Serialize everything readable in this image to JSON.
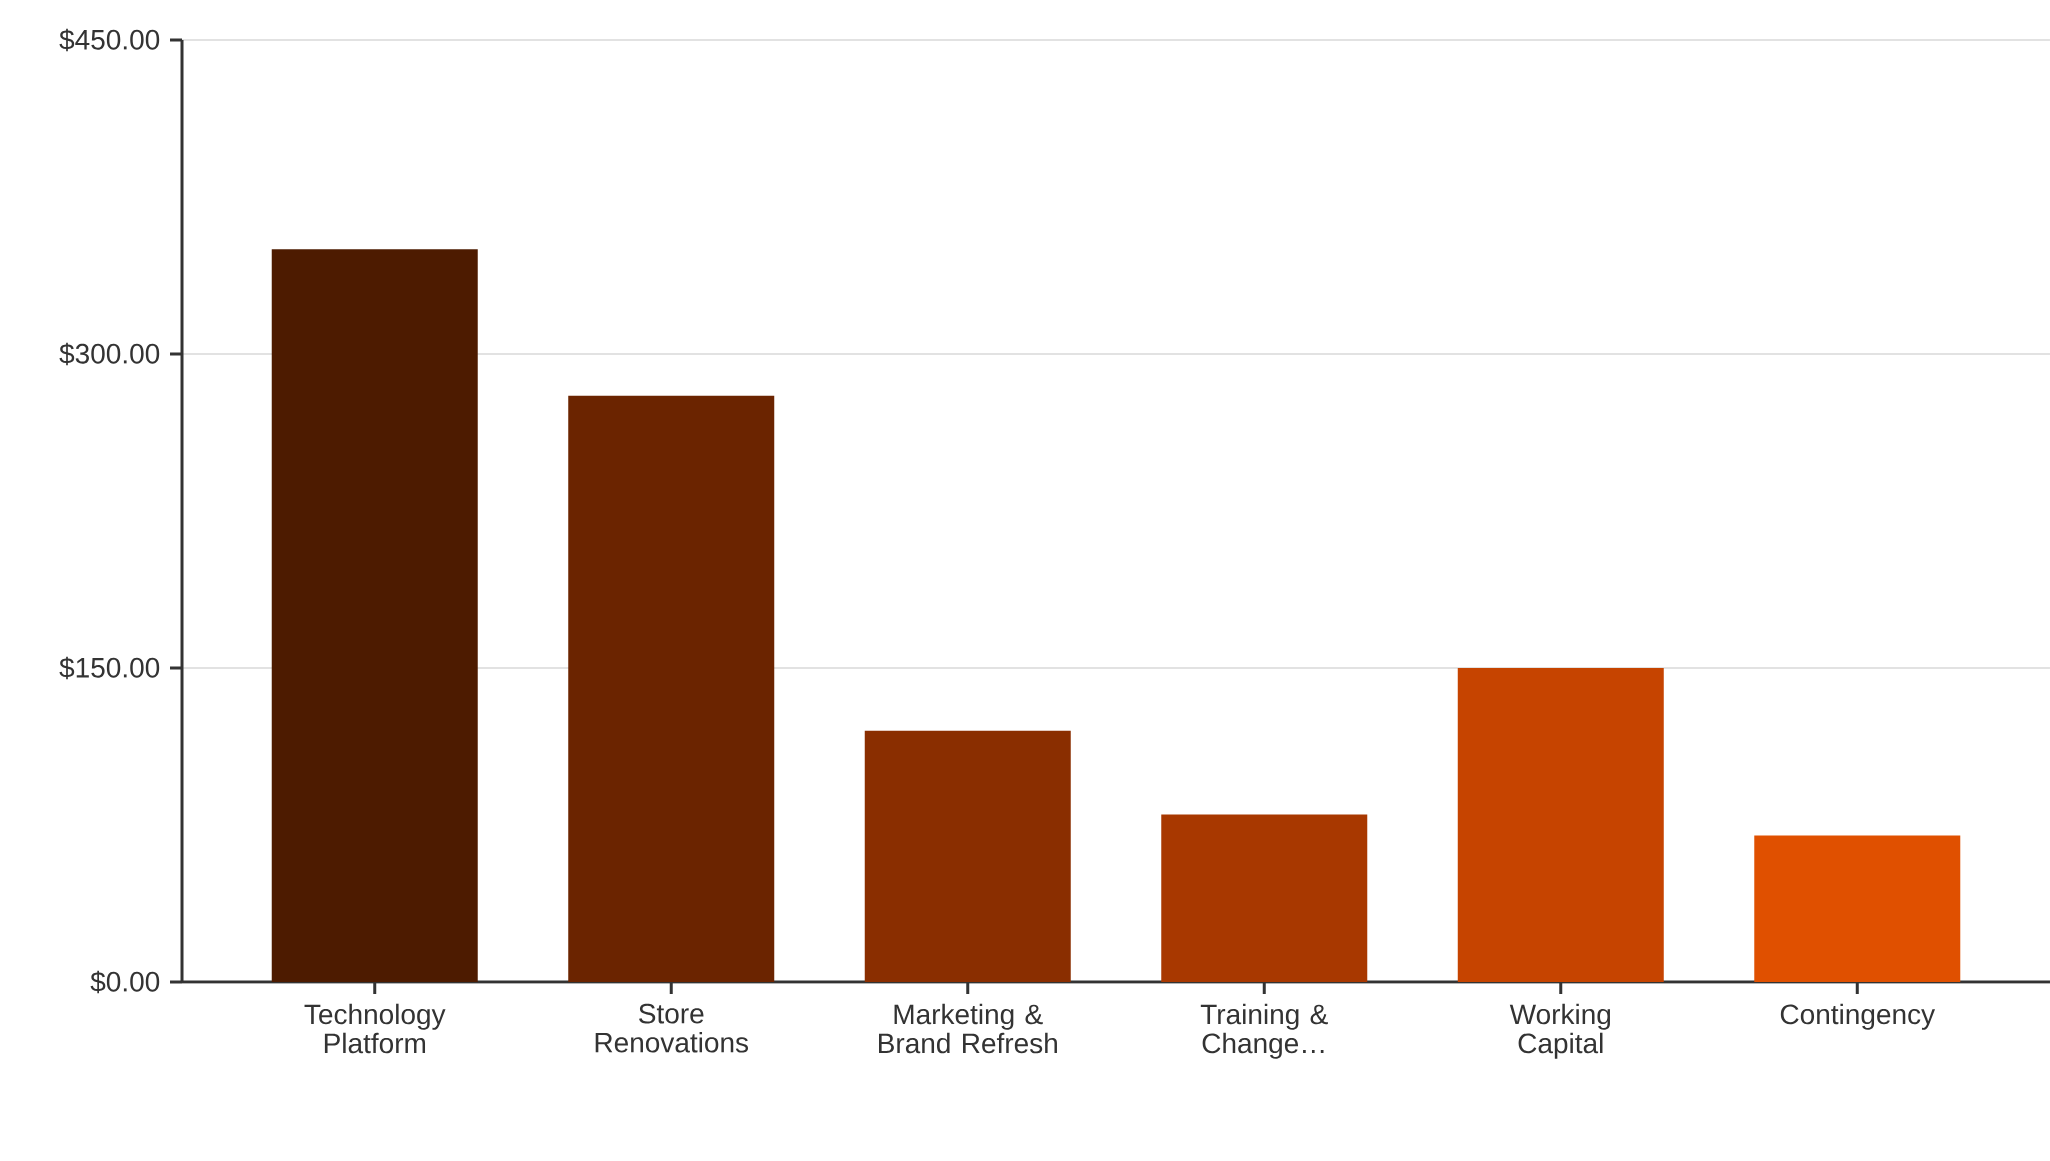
{
  "chart_data": {
    "type": "bar",
    "categories": [
      "Technology Platform",
      "Store Renovations",
      "Marketing & Brand Refresh",
      "Training & Change…",
      "Working Capital",
      "Contingency"
    ],
    "values": [
      350,
      280,
      120,
      80,
      150,
      70
    ],
    "colors": [
      "#4d1b00",
      "#6b2400",
      "#8a2e00",
      "#a83800",
      "#c64400",
      "#e05000"
    ],
    "ylim": [
      0,
      450
    ],
    "yticks": [
      {
        "value": 0,
        "label": "$0.00"
      },
      {
        "value": 150,
        "label": "$150.00"
      },
      {
        "value": 300,
        "label": "$300.00"
      },
      {
        "value": 450,
        "label": "$450.00"
      }
    ],
    "grid": "y"
  }
}
